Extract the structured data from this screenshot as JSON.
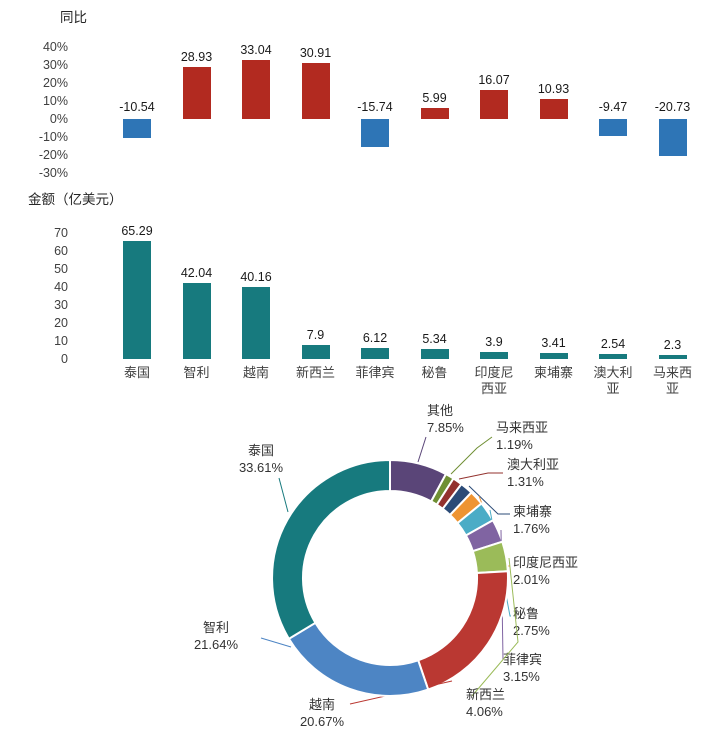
{
  "page": {
    "background": "#ffffff"
  },
  "chart_data": [
    {
      "id": "yoy",
      "type": "bar",
      "title": "同比",
      "categories": [
        "泰国",
        "智利",
        "越南",
        "新西兰",
        "菲律宾",
        "秘鲁",
        "印度尼西亚",
        "柬埔寨",
        "澳大利亚",
        "马来西亚"
      ],
      "values": [
        -10.54,
        28.93,
        33.04,
        30.91,
        -15.74,
        5.99,
        16.07,
        10.93,
        -9.47,
        -20.73
      ],
      "value_labels": [
        "-10.54",
        "28.93",
        "33.04",
        "30.91",
        "-15.74",
        "5.99",
        "16.07",
        "10.93",
        "-9.47",
        "-20.73"
      ],
      "y_ticks": [
        "40%",
        "30%",
        "20%",
        "10%",
        "0%",
        "-10%",
        "-20%",
        "-30%"
      ],
      "ylim": [
        -30,
        40
      ],
      "grid": false,
      "colors": {
        "positive": "#b22a20",
        "negative": "#2e75b6"
      }
    },
    {
      "id": "amount",
      "type": "bar",
      "title": "金额（亿美元）",
      "categories": [
        "泰国",
        "智利",
        "越南",
        "新西兰",
        "菲律宾",
        "秘鲁",
        "印度尼西亚",
        "柬埔寨",
        "澳大利亚",
        "马来西亚"
      ],
      "values": [
        65.29,
        42.04,
        40.16,
        7.9,
        6.12,
        5.34,
        3.9,
        3.41,
        2.54,
        2.3
      ],
      "value_labels": [
        "65.29",
        "42.04",
        "40.16",
        "7.9",
        "6.12",
        "5.34",
        "3.9",
        "3.41",
        "2.54",
        "2.3"
      ],
      "y_ticks": [
        "70",
        "60",
        "50",
        "40",
        "30",
        "20",
        "10",
        "0"
      ],
      "ylim": [
        0,
        70
      ],
      "grid": false,
      "colors": {
        "bar": "#177a7e"
      }
    },
    {
      "id": "share",
      "type": "pie",
      "subtype": "donut",
      "start_angle_deg": 0,
      "direction": "clockwise",
      "slices": [
        {
          "name": "其他",
          "value": 7.85,
          "label": "7.85%",
          "color": "#5a4578"
        },
        {
          "name": "马来西亚",
          "value": 1.19,
          "label": "1.19%",
          "color": "#6f8f33"
        },
        {
          "name": "澳大利亚",
          "value": 1.31,
          "label": "1.31%",
          "color": "#93322e"
        },
        {
          "name": "柬埔寨",
          "value": 1.76,
          "label": "1.76%",
          "color": "#2b4b77"
        },
        {
          "name": "印度尼西亚",
          "value": 2.01,
          "label": "2.01%",
          "color": "#ee9432"
        },
        {
          "name": "秘鲁",
          "value": 2.75,
          "label": "2.75%",
          "color": "#4bacc6"
        },
        {
          "name": "菲律宾",
          "value": 3.15,
          "label": "3.15%",
          "color": "#8064a2"
        },
        {
          "name": "新西兰",
          "value": 4.06,
          "label": "4.06%",
          "color": "#9bbb59"
        },
        {
          "name": "越南",
          "value": 20.67,
          "label": "20.67%",
          "color": "#ba3832"
        },
        {
          "name": "智利",
          "value": 21.64,
          "label": "21.64%",
          "color": "#4d85c4"
        },
        {
          "name": "泰国",
          "value": 33.61,
          "label": "33.61%",
          "color": "#177a7e"
        }
      ]
    }
  ]
}
